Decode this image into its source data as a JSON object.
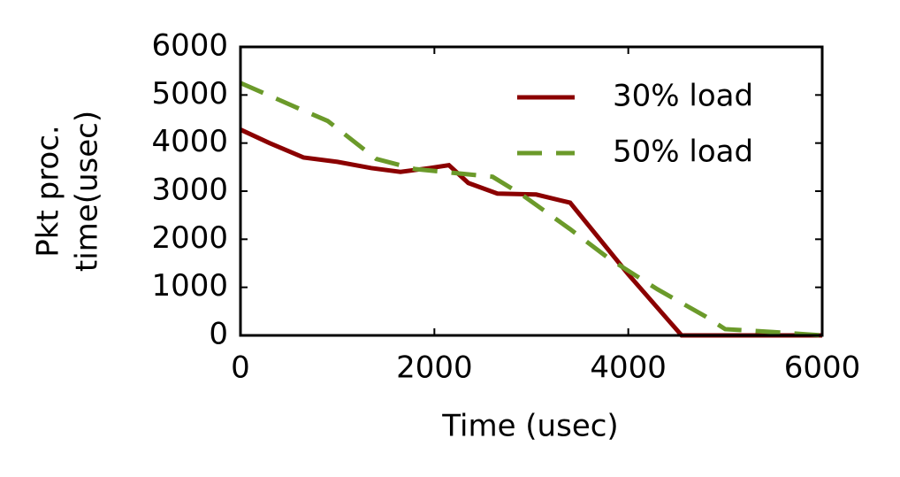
{
  "chart_data": {
    "type": "line",
    "xlabel": "Time (usec)",
    "ylabel": [
      "Pkt proc.",
      "time(usec)"
    ],
    "xlim": [
      0,
      6000
    ],
    "ylim": [
      0,
      6000
    ],
    "xticks": [
      0,
      2000,
      4000,
      6000
    ],
    "yticks": [
      0,
      1000,
      2000,
      3000,
      4000,
      5000,
      6000
    ],
    "grid": false,
    "legend": "upper right",
    "series": [
      {
        "name": "30% load",
        "color": "#8b0000",
        "linestyle": "solid",
        "x": [
          0,
          300,
          650,
          1000,
          1350,
          1650,
          1950,
          2150,
          2350,
          2650,
          3050,
          3400,
          4000,
          4550,
          6000
        ],
        "values": [
          4280,
          4000,
          3700,
          3610,
          3480,
          3400,
          3480,
          3540,
          3170,
          2950,
          2930,
          2760,
          1270,
          0,
          0
        ]
      },
      {
        "name": "50% load",
        "color": "#6b9a2a",
        "linestyle": "dashed",
        "x": [
          0,
          600,
          900,
          1400,
          1800,
          2100,
          2600,
          2900,
          3400,
          3800,
          4300,
          4800,
          5000,
          5500,
          6000
        ],
        "values": [
          5250,
          4720,
          4460,
          3670,
          3460,
          3400,
          3300,
          2930,
          2210,
          1600,
          960,
          390,
          130,
          70,
          0
        ]
      }
    ]
  }
}
